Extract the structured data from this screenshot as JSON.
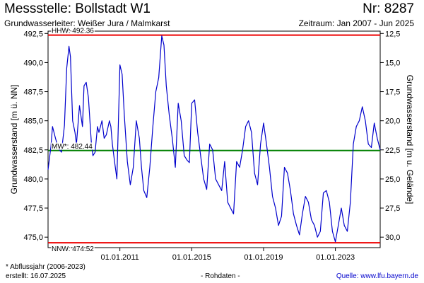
{
  "header": {
    "station_title": "Messstelle: Bollstadt W1",
    "station_number": "Nr: 8287",
    "aquifer": "Grundwasserleiter:   Weißer Jura / Malmkarst",
    "period": "Zeitraum: Jan 2007 - Jun 2025"
  },
  "footer": {
    "footnote": "* Abflussjahr (2006-2023)",
    "created": "erstellt:  16.07.2025",
    "raw_data": "- Rohdaten -",
    "source_label": "Quelle: ",
    "source_url": "www.lfu.bayern.de"
  },
  "colors": {
    "series": "#0000cc",
    "hhw": "#ee0000",
    "nnw": "#ee0000",
    "mw": "#008000",
    "frame": "#000000"
  },
  "chart_data": {
    "type": "line",
    "ylabel": "Grundwasserstand [m ü. NN]",
    "y2label": "Grundwasserstand [m u. Gelände]",
    "ylim": [
      474.1,
      492.7
    ],
    "y_ticks": [
      475.0,
      477.5,
      480.0,
      482.5,
      485.0,
      487.5,
      490.0,
      492.5
    ],
    "y_tick_labels": [
      "475,0",
      "477,5",
      "480,0",
      "482,5",
      "485,0",
      "487,5",
      "490,0",
      "492,5"
    ],
    "y2_ticks": [
      12.5,
      15.0,
      17.5,
      20.0,
      22.5,
      25.0,
      27.5,
      30.0
    ],
    "y2_tick_labels": [
      "12,5",
      "15,0",
      "17,5",
      "20,0",
      "22,5",
      "25,0",
      "27,5",
      "30,0"
    ],
    "y2_offset": 505.0,
    "xlim": [
      "2007-01-01",
      "2025-06-30"
    ],
    "x_ticks": [
      "2011-01-01",
      "2015-01-01",
      "2019-01-01",
      "2023-01-01"
    ],
    "x_tick_labels": [
      "01.01.2011",
      "01.01.2015",
      "01.01.2019",
      "01.01.2023"
    ],
    "grid": false,
    "reference_lines": [
      {
        "name": "HHW",
        "label": "HHW: 492.36",
        "value": 492.36,
        "color": "#ee0000"
      },
      {
        "name": "MW",
        "label": "MW*: 482.44",
        "value": 482.44,
        "color": "#008000"
      },
      {
        "name": "NNW",
        "label": "NNW: 474.52",
        "value": 474.52,
        "color": "#ee0000"
      }
    ],
    "series": [
      {
        "color": "#0000cc",
        "x": [
          "2007-01-01",
          "2007-03-01",
          "2007-04-01",
          "2007-06-01",
          "2007-08-01",
          "2007-10-01",
          "2007-12-01",
          "2008-01-15",
          "2008-03-01",
          "2008-04-01",
          "2008-05-15",
          "2008-07-01",
          "2008-08-01",
          "2008-10-01",
          "2008-12-01",
          "2009-01-01",
          "2009-02-15",
          "2009-04-01",
          "2009-06-01",
          "2009-07-01",
          "2009-08-15",
          "2009-10-01",
          "2009-11-01",
          "2010-01-01",
          "2010-02-15",
          "2010-04-01",
          "2010-06-01",
          "2010-07-01",
          "2010-08-01",
          "2010-09-15",
          "2010-11-01",
          "2011-01-01",
          "2011-02-15",
          "2011-04-01",
          "2011-06-01",
          "2011-08-01",
          "2011-10-01",
          "2011-12-01",
          "2012-02-01",
          "2012-03-15",
          "2012-05-01",
          "2012-07-01",
          "2012-09-01",
          "2012-11-01",
          "2013-01-01",
          "2013-03-01",
          "2013-05-01",
          "2013-06-15",
          "2013-08-01",
          "2013-10-01",
          "2013-12-01",
          "2014-02-01",
          "2014-04-01",
          "2014-06-01",
          "2014-08-01",
          "2014-10-01",
          "2014-11-15",
          "2015-01-01",
          "2015-03-01",
          "2015-05-01",
          "2015-07-01",
          "2015-09-01",
          "2015-11-01",
          "2016-01-01",
          "2016-03-01",
          "2016-05-01",
          "2016-07-01",
          "2016-09-01",
          "2016-11-01",
          "2017-01-01",
          "2017-03-01",
          "2017-05-01",
          "2017-07-01",
          "2017-09-01",
          "2017-11-01",
          "2018-01-01",
          "2018-03-01",
          "2018-05-01",
          "2018-07-01",
          "2018-09-01",
          "2018-11-01",
          "2019-01-01",
          "2019-03-01",
          "2019-05-01",
          "2019-07-01",
          "2019-09-01",
          "2019-11-01",
          "2020-01-01",
          "2020-03-01",
          "2020-05-01",
          "2020-07-01",
          "2020-09-01",
          "2020-11-01",
          "2021-01-01",
          "2021-03-01",
          "2021-05-01",
          "2021-07-01",
          "2021-09-01",
          "2021-11-01",
          "2022-01-01",
          "2022-03-01",
          "2022-05-01",
          "2022-07-01",
          "2022-09-01",
          "2022-11-01",
          "2023-01-01",
          "2023-03-01",
          "2023-05-01",
          "2023-07-01",
          "2023-09-01",
          "2023-11-01",
          "2024-01-01",
          "2024-03-01",
          "2024-05-01",
          "2024-07-01",
          "2024-09-01",
          "2024-11-01",
          "2025-01-01",
          "2025-03-01",
          "2025-05-01",
          "2025-06-30"
        ],
        "values": [
          480.8,
          482.8,
          484.5,
          483.5,
          482.6,
          482.3,
          484.6,
          489.5,
          491.4,
          490.5,
          485.0,
          484.0,
          483.0,
          486.3,
          484.5,
          488.0,
          488.3,
          487.0,
          483.0,
          482.0,
          482.3,
          484.5,
          484.0,
          485.0,
          483.5,
          483.8,
          485.0,
          484.5,
          483.0,
          481.5,
          480.0,
          489.8,
          489.0,
          485.5,
          481.5,
          479.5,
          481.0,
          485.0,
          483.5,
          481.0,
          479.0,
          478.4,
          481.0,
          484.5,
          487.5,
          488.7,
          492.3,
          491.5,
          488.0,
          485.5,
          483.5,
          481.0,
          486.5,
          485.0,
          482.0,
          481.6,
          481.4,
          486.5,
          486.8,
          484.0,
          482.0,
          480.0,
          479.1,
          483.0,
          482.5,
          480.0,
          479.5,
          479.0,
          481.5,
          478.0,
          477.5,
          477.0,
          481.5,
          481.0,
          482.5,
          484.5,
          485.0,
          484.0,
          480.5,
          479.5,
          483.0,
          484.8,
          483.0,
          481.0,
          478.5,
          477.5,
          476.0,
          476.8,
          481.0,
          480.5,
          479.0,
          477.0,
          476.0,
          475.2,
          477.0,
          478.5,
          478.0,
          476.5,
          476.0,
          475.0,
          475.5,
          478.8,
          479.0,
          478.0,
          475.5,
          474.6,
          476.0,
          477.5,
          476.0,
          475.5,
          478.0,
          483.0,
          484.5,
          485.0,
          486.2,
          485.0,
          483.0,
          482.7,
          484.8,
          483.5,
          482.5
        ]
      }
    ]
  }
}
